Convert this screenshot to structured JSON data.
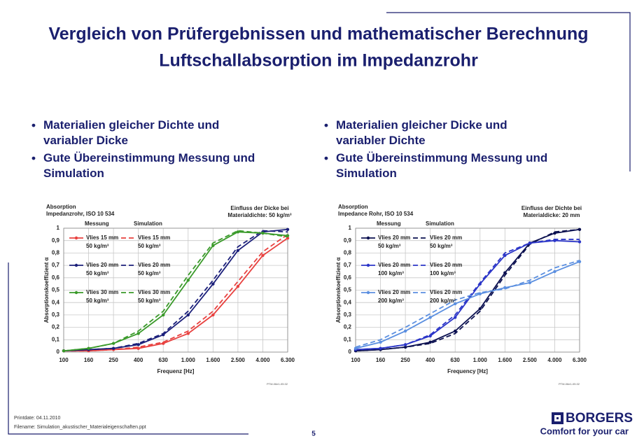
{
  "header": {
    "title": [
      "Vergleich von Prüfergebnissen und mathematischer Berechnung",
      "Luftschallabsorption im Impedanzrohr"
    ]
  },
  "bullets": [
    [
      "Materialien gleicher Dichte und variabler Dicke",
      "Gute Übereinstimmung Messung und Simulation"
    ],
    [
      "Materialien gleicher Dicke und variabler Dichte",
      "Gute Übereinstimmung Messung und Simulation"
    ]
  ],
  "chart_data": [
    {
      "type": "line",
      "title": [
        "Absorption",
        "Impedanzrohr, ISO 10 534"
      ],
      "annotation": [
        "Einfluss der Dicke bei",
        "Materialdichte: 50 kg/m³"
      ],
      "legend_headers": [
        "Messung",
        "Simulation"
      ],
      "xlabel": "Frequenz [Hz]",
      "ylabel": "Absorptionskoeffizient α",
      "note": "PTM-06e1-05.02",
      "categories": [
        "100",
        "160",
        "250",
        "400",
        "630",
        "1.000",
        "1.600",
        "2.500",
        "4.000",
        "6.300"
      ],
      "ylim": [
        0,
        1
      ],
      "yticks": [
        0,
        {
          "value": 0.1,
          "label": "0,1"
        },
        {
          "value": 0.2,
          "label": "0,2"
        },
        {
          "value": 0.3,
          "label": "0,3"
        },
        {
          "value": 0.4,
          "label": "0,4"
        },
        {
          "value": 0.5,
          "label": "0,5"
        },
        {
          "value": 0.6,
          "label": "0,6"
        },
        {
          "value": 0.7,
          "label": "0,7"
        },
        {
          "value": 0.8,
          "label": "0,8"
        },
        {
          "value": 0.9,
          "label": "0,9"
        },
        1
      ],
      "grid": true,
      "series": [
        {
          "name": "Vlies 15 mm",
          "density": "50 kg/m³",
          "color": "#e8413f",
          "dashed": false,
          "values": [
            0.01,
            0.01,
            0.02,
            0.03,
            0.07,
            0.15,
            0.3,
            0.53,
            0.78,
            0.92
          ]
        },
        {
          "name": "Vlies 15 mm",
          "density": "50 kg/m³",
          "color": "#e8413f",
          "dashed": true,
          "values": [
            0.01,
            0.01,
            0.02,
            0.04,
            0.08,
            0.17,
            0.33,
            0.57,
            0.81,
            0.95
          ]
        },
        {
          "name": "Vlies 20 mm",
          "density": "50 kg/m³",
          "color": "#1b1f7a",
          "dashed": false,
          "values": [
            0.01,
            0.02,
            0.03,
            0.06,
            0.14,
            0.3,
            0.55,
            0.82,
            0.97,
            0.99
          ]
        },
        {
          "name": "Vlies 20 mm",
          "density": "50 kg/m³",
          "color": "#1b1f7a",
          "dashed": true,
          "values": [
            0.01,
            0.02,
            0.03,
            0.07,
            0.15,
            0.33,
            0.58,
            0.85,
            0.98,
            0.97
          ]
        },
        {
          "name": "Vlies 30 mm",
          "density": "50 kg/m³",
          "color": "#3a9a2a",
          "dashed": false,
          "values": [
            0.01,
            0.03,
            0.07,
            0.15,
            0.3,
            0.58,
            0.86,
            0.97,
            0.96,
            0.94
          ]
        },
        {
          "name": "Vlies 30 mm",
          "density": "50 kg/m³",
          "color": "#3a9a2a",
          "dashed": true,
          "values": [
            0.01,
            0.03,
            0.07,
            0.17,
            0.33,
            0.62,
            0.88,
            0.98,
            0.96,
            0.93
          ]
        }
      ]
    },
    {
      "type": "line",
      "title": [
        "Absorption",
        "Impedance Rohr, ISO 10 534"
      ],
      "annotation": [
        "Einfluss der Dichte bei",
        "Materialdicke: 20 mm"
      ],
      "legend_headers": [
        "Messung",
        "Simulation"
      ],
      "xlabel": "Frequency [Hz]",
      "ylabel": "Absorptionskoeffizient α",
      "note": "PTM-06e1-05.02",
      "categories": [
        "100",
        "160",
        "250",
        "400",
        "630",
        "1.000",
        "1.600",
        "2.500",
        "4.000",
        "6.300"
      ],
      "ylim": [
        0,
        1
      ],
      "yticks": [
        0,
        {
          "value": 0.1,
          "label": "0,1"
        },
        {
          "value": 0.2,
          "label": "0,2"
        },
        {
          "value": 0.3,
          "label": "0,3"
        },
        {
          "value": 0.4,
          "label": "0,4"
        },
        {
          "value": 0.5,
          "label": "0,5"
        },
        {
          "value": 0.6,
          "label": "0,6"
        },
        {
          "value": 0.7,
          "label": "0,7"
        },
        {
          "value": 0.8,
          "label": "0,8"
        },
        {
          "value": 0.9,
          "label": "0,9"
        },
        1
      ],
      "grid": true,
      "series": [
        {
          "name": "Vlies 20 mm",
          "density": "50 kg/m³",
          "color": "#0b1050",
          "dashed": false,
          "values": [
            0.01,
            0.02,
            0.04,
            0.08,
            0.17,
            0.35,
            0.64,
            0.88,
            0.96,
            0.99
          ]
        },
        {
          "name": "Vlies 20 mm",
          "density": "50 kg/m³",
          "color": "#0b1050",
          "dashed": true,
          "values": [
            0.01,
            0.02,
            0.04,
            0.07,
            0.15,
            0.33,
            0.62,
            0.87,
            0.97,
            0.99
          ]
        },
        {
          "name": "Vlies 20 mm",
          "density": "100 kg/m³",
          "color": "#2b35c8",
          "dashed": false,
          "values": [
            0.02,
            0.03,
            0.06,
            0.13,
            0.28,
            0.55,
            0.78,
            0.88,
            0.9,
            0.89
          ]
        },
        {
          "name": "Vlies 20 mm",
          "density": "100 kg/m³",
          "color": "#2b35c8",
          "dashed": true,
          "values": [
            0.02,
            0.03,
            0.06,
            0.14,
            0.3,
            0.56,
            0.8,
            0.88,
            0.91,
            0.91
          ]
        },
        {
          "name": "Vlies 20 mm",
          "density": "200 kg/m³",
          "color": "#5b8fe0",
          "dashed": false,
          "values": [
            0.03,
            0.08,
            0.17,
            0.28,
            0.39,
            0.47,
            0.52,
            0.56,
            0.65,
            0.73
          ]
        },
        {
          "name": "Vlies 20 mm",
          "density": "200 kg/m³",
          "color": "#5b8fe0",
          "dashed": true,
          "values": [
            0.04,
            0.1,
            0.2,
            0.31,
            0.42,
            0.48,
            0.51,
            0.58,
            0.68,
            0.74
          ]
        }
      ]
    }
  ],
  "footer": {
    "printdate": "Printdate: 04.11.2010",
    "filename": "Filename: Simulation_akustischer_Materialeigenschaften.ppt",
    "page": "5",
    "brand": "BORGERS",
    "slogan": "Comfort for your car"
  }
}
